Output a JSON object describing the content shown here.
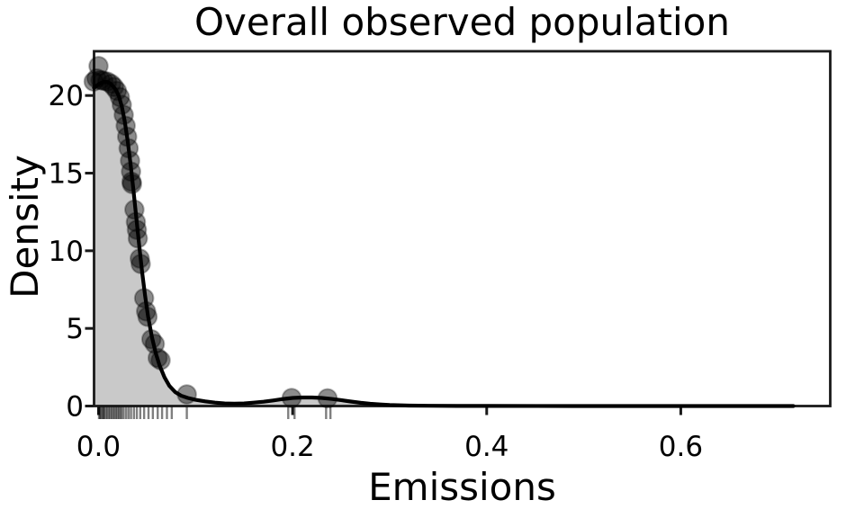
{
  "chart_data": {
    "type": "area",
    "title": "Overall observed population",
    "xlabel": "Emissions",
    "ylabel": "Density",
    "xlim": [
      -0.0046,
      0.754
    ],
    "ylim": [
      0,
      22.85
    ],
    "xticks": {
      "values": [
        0.0,
        0.2,
        0.4,
        0.6
      ],
      "labels": [
        "0.0",
        "0.2",
        "0.4",
        "0.6"
      ]
    },
    "yticks": {
      "values": [
        0,
        5,
        10,
        15,
        20
      ],
      "labels": [
        "0",
        "5",
        "10",
        "15",
        "20"
      ]
    },
    "grid": false,
    "legend": null,
    "kde_curve": [
      [
        -0.0046,
        20.5
      ],
      [
        0.0,
        20.72
      ],
      [
        0.003,
        20.82
      ],
      [
        0.006,
        20.88
      ],
      [
        0.009,
        20.87
      ],
      [
        0.012,
        20.78
      ],
      [
        0.015,
        20.6
      ],
      [
        0.018,
        20.35
      ],
      [
        0.021,
        19.95
      ],
      [
        0.024,
        19.3
      ],
      [
        0.027,
        18.35
      ],
      [
        0.03,
        17.1
      ],
      [
        0.033,
        15.6
      ],
      [
        0.036,
        13.9
      ],
      [
        0.039,
        12.1
      ],
      [
        0.042,
        10.3
      ],
      [
        0.045,
        8.6
      ],
      [
        0.048,
        7.1
      ],
      [
        0.051,
        5.8
      ],
      [
        0.055,
        4.45
      ],
      [
        0.059,
        3.4
      ],
      [
        0.063,
        2.6
      ],
      [
        0.068,
        1.85
      ],
      [
        0.073,
        1.3
      ],
      [
        0.079,
        0.9
      ],
      [
        0.085,
        0.67
      ],
      [
        0.092,
        0.52
      ],
      [
        0.1,
        0.4
      ],
      [
        0.11,
        0.3
      ],
      [
        0.12,
        0.22
      ],
      [
        0.13,
        0.17
      ],
      [
        0.14,
        0.15
      ],
      [
        0.15,
        0.17
      ],
      [
        0.16,
        0.22
      ],
      [
        0.17,
        0.28
      ],
      [
        0.18,
        0.36
      ],
      [
        0.19,
        0.45
      ],
      [
        0.2,
        0.52
      ],
      [
        0.21,
        0.55
      ],
      [
        0.22,
        0.55
      ],
      [
        0.23,
        0.52
      ],
      [
        0.24,
        0.46
      ],
      [
        0.25,
        0.38
      ],
      [
        0.26,
        0.29
      ],
      [
        0.27,
        0.21
      ],
      [
        0.28,
        0.145
      ],
      [
        0.29,
        0.1
      ],
      [
        0.3,
        0.065
      ],
      [
        0.32,
        0.03
      ],
      [
        0.34,
        0.017
      ],
      [
        0.37,
        0.009
      ],
      [
        0.4,
        0.005
      ],
      [
        0.45,
        0.003
      ],
      [
        0.5,
        0.002
      ],
      [
        0.55,
        0.0015
      ],
      [
        0.6,
        0.001
      ],
      [
        0.65,
        0.0008
      ],
      [
        0.7,
        0.0005
      ],
      [
        0.716,
        0.0004
      ]
    ],
    "scatter_points": [
      [
        0.0,
        21.9
      ],
      [
        -0.005,
        20.9
      ],
      [
        -0.002,
        21.1
      ],
      [
        0.002,
        21.0
      ],
      [
        0.005,
        20.95
      ],
      [
        0.009,
        20.9
      ],
      [
        0.013,
        20.75
      ],
      [
        0.016,
        20.55
      ],
      [
        0.019,
        20.3
      ],
      [
        0.022,
        19.9
      ],
      [
        0.024,
        19.4
      ],
      [
        0.026,
        18.75
      ],
      [
        0.028,
        18.05
      ],
      [
        0.0295,
        17.35
      ],
      [
        0.031,
        16.6
      ],
      [
        0.0325,
        15.8
      ],
      [
        0.0335,
        15.1
      ],
      [
        0.034,
        14.45
      ],
      [
        0.0345,
        14.3
      ],
      [
        0.037,
        12.65
      ],
      [
        0.0385,
        11.85
      ],
      [
        0.0395,
        11.35
      ],
      [
        0.0405,
        10.8
      ],
      [
        0.0425,
        9.5
      ],
      [
        0.0435,
        9.15
      ],
      [
        0.047,
        6.95
      ],
      [
        0.049,
        6.1
      ],
      [
        0.0505,
        5.75
      ],
      [
        0.0545,
        4.3
      ],
      [
        0.058,
        4.0
      ],
      [
        0.061,
        3.1
      ],
      [
        0.064,
        2.95
      ],
      [
        0.091,
        0.75
      ],
      [
        0.199,
        0.52
      ],
      [
        0.236,
        0.5
      ]
    ],
    "rug_x": [
      0.0005,
      0.0015,
      0.0025,
      0.004,
      0.005,
      0.006,
      0.0075,
      0.009,
      0.0105,
      0.012,
      0.0135,
      0.015,
      0.0165,
      0.018,
      0.0195,
      0.021,
      0.0225,
      0.024,
      0.026,
      0.0285,
      0.031,
      0.0335,
      0.0365,
      0.0395,
      0.043,
      0.047,
      0.0515,
      0.056,
      0.061,
      0.0655,
      0.0705,
      0.0755,
      0.091,
      0.1955,
      0.202,
      0.2345,
      0.239
    ],
    "colors": {
      "background": "#ffffff",
      "area_fill": "#c9c9c9",
      "curve": "#000000",
      "axis": "#1a1a1a",
      "point_fill": "rgba(0,0,0,0.45)",
      "point_edge": "rgba(0,0,0,0.30)",
      "rug": "rgba(0,0,0,0.50)",
      "text": "#000000"
    }
  }
}
